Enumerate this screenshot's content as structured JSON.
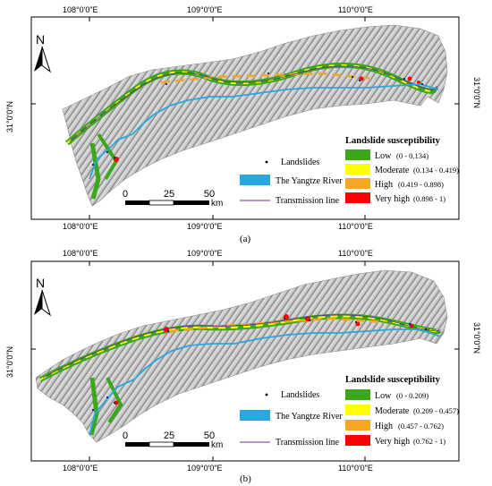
{
  "panels": [
    {
      "id": "a",
      "caption": "(a)",
      "top_lon_labels": [
        "108°0'0\"E",
        "109°0'0\"E",
        "110°0'0\"E"
      ],
      "bottom_lon_labels": [
        "108°0'0\"E",
        "109°0'0\"E",
        "110°0'0\"E"
      ],
      "lat_label_left": "31°0'0\"N",
      "lat_label_right": "31°0'0\"N",
      "north_label": "N",
      "scale_labels": [
        "0",
        "25",
        "50"
      ],
      "scale_unit": "km",
      "legend_items": {
        "landslides": "Landslides",
        "river": "The Yangtze River",
        "transmission": "Transmission line"
      },
      "susceptibility_title": "Landslide susceptibility",
      "classes": [
        {
          "label": "Low",
          "range": "(0 - 0.134)",
          "color": "#3aa81a"
        },
        {
          "label": "Moderate",
          "range": "(0.134 - 0.419)",
          "color": "#ffff00"
        },
        {
          "label": "High",
          "range": "(0.419 - 0.898)",
          "color": "#f5a623"
        },
        {
          "label": "Very high",
          "range": "(0.898 - 1)",
          "color": "#ff0000"
        }
      ]
    },
    {
      "id": "b",
      "caption": "(b)",
      "top_lon_labels": [
        "108°0'0\"E",
        "109°0'0\"E",
        "110°0'0\"E"
      ],
      "bottom_lon_labels": [
        "108°0'0\"E",
        "109°0'0\"E",
        "110°0'0\"E"
      ],
      "lat_label_left": "31°0'0\"N",
      "lat_label_right": "31°0'0\"N",
      "north_label": "N",
      "scale_labels": [
        "0",
        "25",
        "50"
      ],
      "scale_unit": "km",
      "legend_items": {
        "landslides": "Landslides",
        "river": "The Yangtze River",
        "transmission": "Transmission line"
      },
      "susceptibility_title": "Landslide susceptibility",
      "classes": [
        {
          "label": "Low",
          "range": "(0 - 0.209)",
          "color": "#3aa81a"
        },
        {
          "label": "Moderate",
          "range": "(0.209 - 0.457)",
          "color": "#ffff00"
        },
        {
          "label": "High",
          "range": "(0.457 - 0.762)",
          "color": "#f5a623"
        },
        {
          "label": "Very high",
          "range": "(0.762 - 1)",
          "color": "#ff0000"
        }
      ]
    }
  ],
  "colors": {
    "river": "#29a8e0",
    "terrain": "#9a9a9a",
    "transmission": "#6a2c91"
  }
}
